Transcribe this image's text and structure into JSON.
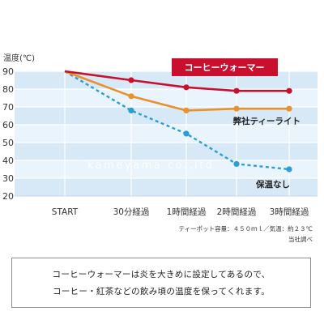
{
  "chart_data": {
    "type": "line",
    "ylabel": "温度(℃)",
    "categories": [
      "START",
      "30分経過",
      "1時間経過",
      "2時間経過",
      "3時間経過"
    ],
    "yticks": [
      20,
      30,
      40,
      50,
      60,
      70,
      80,
      90
    ],
    "ylim": [
      20,
      90
    ],
    "grid": true,
    "series": [
      {
        "name": "コーヒーウォーマー",
        "values": [
          90,
          85,
          81,
          79,
          79
        ],
        "color": "#c8102e",
        "dashed": false
      },
      {
        "name": "弊社ティーライト",
        "values": [
          90,
          76,
          68,
          69,
          69
        ],
        "color": "#e8912d",
        "dashed": false
      },
      {
        "name": "保温なし",
        "values": [
          90,
          68,
          55,
          38,
          35
        ],
        "color": "#2a9fd6",
        "dashed": true
      }
    ],
    "watermark": "kameyama co.,ltd"
  },
  "notes": {
    "condition": "ティーポット容量：４５０ｍｌ／気温：約２３℃",
    "source": "当社調べ"
  },
  "description": {
    "line1": "コーヒーウォーマーは炎を大きめに設定してあるので、",
    "line2": "コーヒー・紅茶などの飲み頃の温度を保ってくれます。"
  }
}
